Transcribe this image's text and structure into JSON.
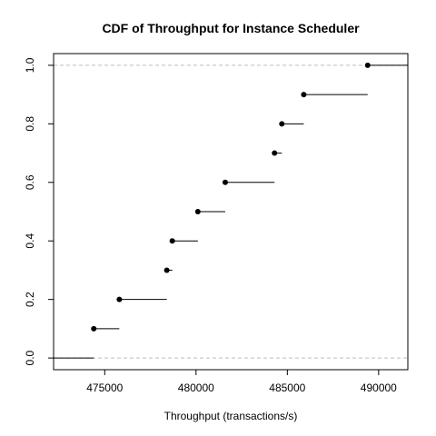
{
  "chart_data": {
    "type": "line",
    "subtype": "ecdf-step",
    "title": "CDF of Throughput for Instance Scheduler",
    "xlabel": "Throughput (transactions/s)",
    "ylabel": "",
    "xlim": [
      472200,
      491600
    ],
    "ylim": [
      -0.04,
      1.04
    ],
    "x_ticks": [
      475000,
      480000,
      485000,
      490000
    ],
    "y_ticks": [
      0.0,
      0.2,
      0.4,
      0.6,
      0.8,
      1.0
    ],
    "reference_lines_y": [
      0.0,
      1.0
    ],
    "x": [
      474400,
      475800,
      478400,
      478700,
      480100,
      481600,
      484300,
      484700,
      485900,
      489400
    ],
    "y": [
      0.1,
      0.2,
      0.3,
      0.4,
      0.5,
      0.6,
      0.7,
      0.8,
      0.9,
      1.0
    ],
    "grid": false,
    "legend": "none"
  }
}
